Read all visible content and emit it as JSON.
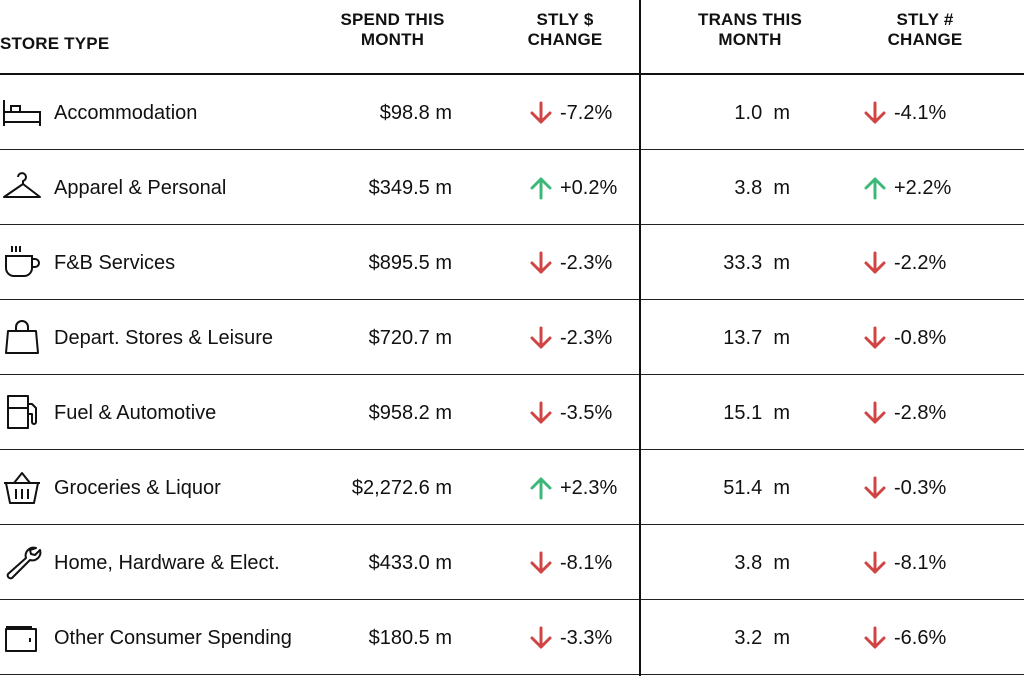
{
  "header": {
    "store_type": "STORE TYPE",
    "spend_line1": "SPEND THIS",
    "spend_line2": "MONTH",
    "stly_dollar_line1": "STLY $",
    "stly_dollar_line2": "CHANGE",
    "trans_line1": "TRANS THIS",
    "trans_line2": "MONTH",
    "stly_count_line1": "STLY #",
    "stly_count_line2": "CHANGE"
  },
  "colors": {
    "down": "#d04444",
    "up": "#3cb878",
    "text": "#111111"
  },
  "rows": [
    {
      "icon": "bed-icon",
      "label": "Accommodation",
      "spend": "$98.8 m",
      "stly_dollar": "-7.2%",
      "stly_dollar_dir": "down",
      "trans": "1.0  m",
      "stly_count": "-4.1%",
      "stly_count_dir": "down"
    },
    {
      "icon": "hanger-icon",
      "label": "Apparel & Personal",
      "spend": "$349.5 m",
      "stly_dollar": "+0.2%",
      "stly_dollar_dir": "up",
      "trans": "3.8  m",
      "stly_count": "+2.2%",
      "stly_count_dir": "up"
    },
    {
      "icon": "coffee-cup-icon",
      "label": "F&B Services",
      "spend": "$895.5 m",
      "stly_dollar": "-2.3%",
      "stly_dollar_dir": "down",
      "trans": "33.3  m",
      "stly_count": "-2.2%",
      "stly_count_dir": "down"
    },
    {
      "icon": "shopping-bag-icon",
      "label": "Depart. Stores & Leisure",
      "spend": "$720.7 m",
      "stly_dollar": "-2.3%",
      "stly_dollar_dir": "down",
      "trans": "13.7  m",
      "stly_count": "-0.8%",
      "stly_count_dir": "down"
    },
    {
      "icon": "fuel-pump-icon",
      "label": "Fuel & Automotive",
      "spend": "$958.2 m",
      "stly_dollar": "-3.5%",
      "stly_dollar_dir": "down",
      "trans": "15.1  m",
      "stly_count": "-2.8%",
      "stly_count_dir": "down"
    },
    {
      "icon": "basket-icon",
      "label": "Groceries & Liquor",
      "spend": "$2,272.6 m",
      "stly_dollar": "+2.3%",
      "stly_dollar_dir": "up",
      "trans": "51.4  m",
      "stly_count": "-0.3%",
      "stly_count_dir": "down"
    },
    {
      "icon": "wrench-icon",
      "label": "Home, Hardware & Elect.",
      "spend": "$433.0 m",
      "stly_dollar": "-8.1%",
      "stly_dollar_dir": "down",
      "trans": "3.8  m",
      "stly_count": "-8.1%",
      "stly_count_dir": "down"
    },
    {
      "icon": "wallet-icon",
      "label": "Other Consumer Spending",
      "spend": "$180.5 m",
      "stly_dollar": "-3.3%",
      "stly_dollar_dir": "down",
      "trans": "3.2  m",
      "stly_count": "-6.6%",
      "stly_count_dir": "down"
    }
  ]
}
